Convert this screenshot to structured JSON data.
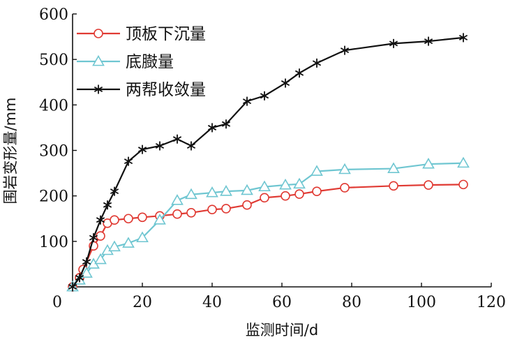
{
  "chart_data": {
    "type": "line",
    "xlabel": "监测时间/d",
    "ylabel": "围岩变形量/mm",
    "xlim": [
      0,
      120
    ],
    "ylim": [
      0,
      600
    ],
    "xticks": [
      "0",
      "20",
      "40",
      "60",
      "80",
      "100",
      "120"
    ],
    "yticks": [
      "100",
      "200",
      "300",
      "400",
      "500",
      "600"
    ],
    "grid": false,
    "legend_position": "top-left",
    "series": [
      {
        "name": "顶板下沉量",
        "color": "#e03a33",
        "marker": "circle",
        "points": [
          [
            0,
            0
          ],
          [
            2,
            20
          ],
          [
            3,
            38
          ],
          [
            6,
            90
          ],
          [
            8,
            112
          ],
          [
            10,
            140
          ],
          [
            12,
            147
          ],
          [
            16,
            150
          ],
          [
            20,
            153
          ],
          [
            25,
            156
          ],
          [
            30,
            160
          ],
          [
            34,
            163
          ],
          [
            40,
            170
          ],
          [
            44,
            172
          ],
          [
            50,
            180
          ],
          [
            55,
            196
          ],
          [
            61,
            200
          ],
          [
            65,
            204
          ],
          [
            70,
            210
          ],
          [
            78,
            218
          ],
          [
            92,
            222
          ],
          [
            102,
            224
          ],
          [
            112,
            225
          ]
        ]
      },
      {
        "name": "底臌量",
        "color": "#6fc6d1",
        "marker": "triangle",
        "points": [
          [
            0,
            0
          ],
          [
            2,
            15
          ],
          [
            4,
            30
          ],
          [
            6,
            50
          ],
          [
            8,
            60
          ],
          [
            10,
            80
          ],
          [
            12,
            88
          ],
          [
            16,
            96
          ],
          [
            20,
            108
          ],
          [
            25,
            147
          ],
          [
            30,
            190
          ],
          [
            34,
            203
          ],
          [
            40,
            207
          ],
          [
            44,
            210
          ],
          [
            50,
            212
          ],
          [
            55,
            220
          ],
          [
            61,
            224
          ],
          [
            65,
            226
          ],
          [
            70,
            254
          ],
          [
            78,
            258
          ],
          [
            92,
            260
          ],
          [
            102,
            270
          ],
          [
            112,
            272
          ]
        ]
      },
      {
        "name": "两帮收敛量",
        "color": "#111111",
        "marker": "asterisk",
        "points": [
          [
            0,
            0
          ],
          [
            2,
            20
          ],
          [
            4,
            55
          ],
          [
            6,
            108
          ],
          [
            8,
            147
          ],
          [
            10,
            180
          ],
          [
            12,
            210
          ],
          [
            16,
            276
          ],
          [
            20,
            302
          ],
          [
            25,
            310
          ],
          [
            30,
            325
          ],
          [
            34,
            310
          ],
          [
            40,
            350
          ],
          [
            44,
            358
          ],
          [
            50,
            408
          ],
          [
            55,
            420
          ],
          [
            61,
            448
          ],
          [
            65,
            470
          ],
          [
            70,
            492
          ],
          [
            78,
            520
          ],
          [
            92,
            535
          ],
          [
            102,
            540
          ],
          [
            112,
            548
          ]
        ]
      }
    ]
  }
}
